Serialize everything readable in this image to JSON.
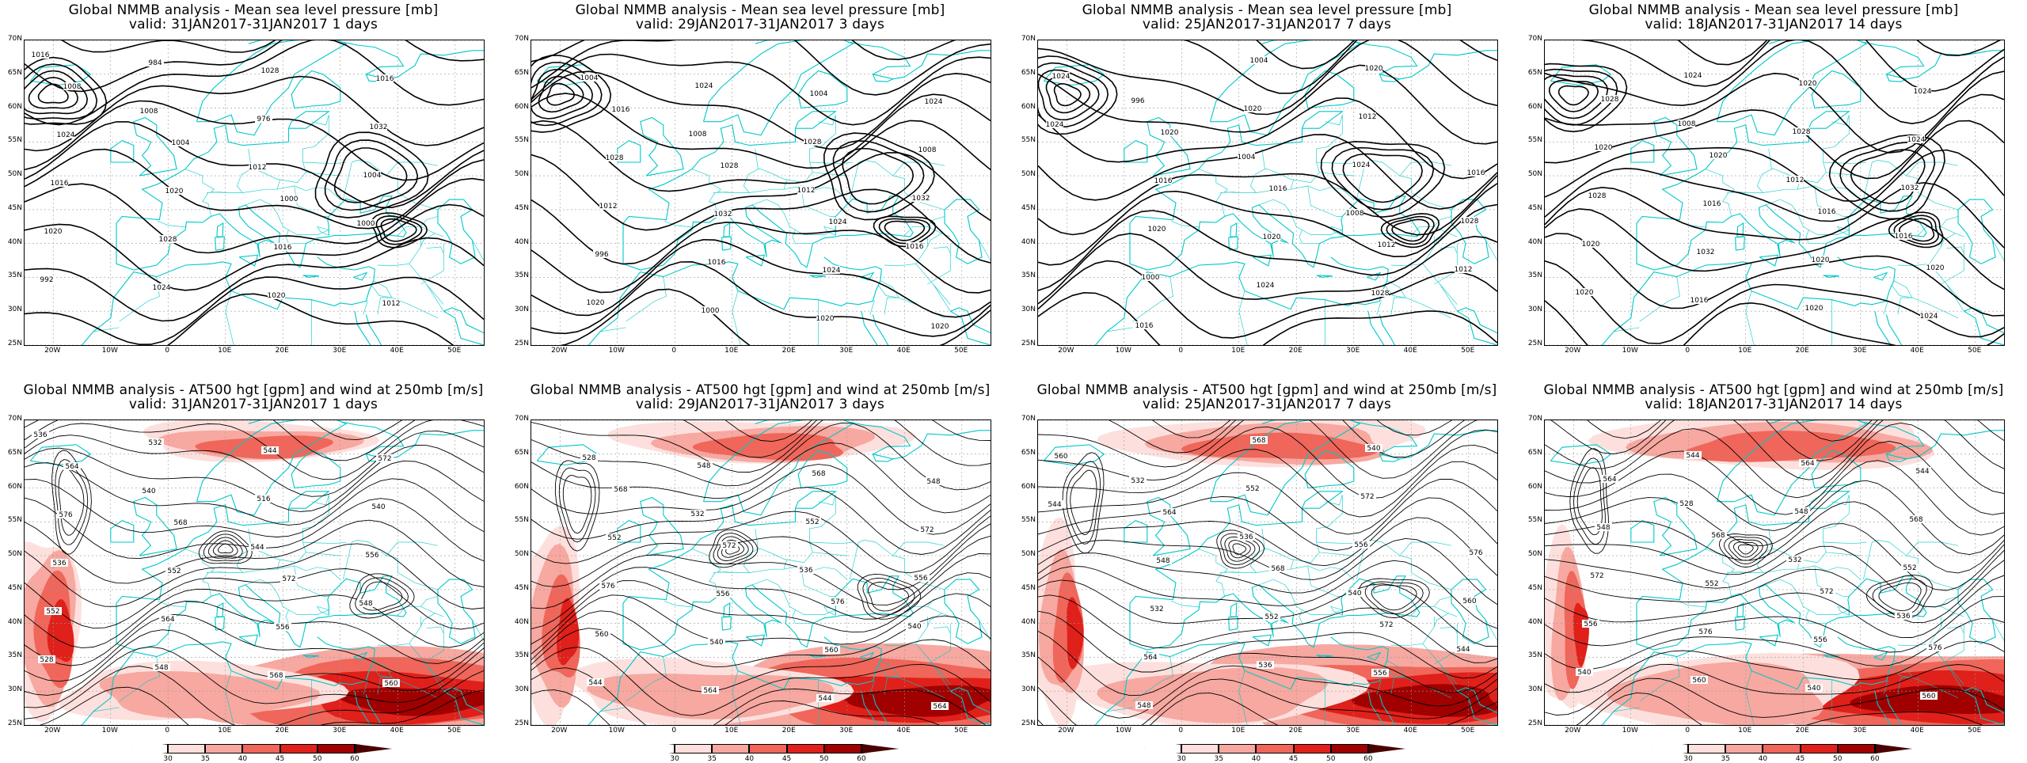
{
  "panels": [
    {
      "title": "Global NMMB analysis - Mean sea level pressure [mb]",
      "subtitle": "valid: 31JAN2017-31JAN2017  1 days",
      "kind": "mslp",
      "variant": 0,
      "labels": [
        "1016",
        "1008",
        "1012",
        "1000",
        "992",
        "984",
        "976",
        "1004",
        "1020",
        "1024",
        "1028",
        "1032",
        "1016",
        "1028",
        "1020",
        "1016",
        "1024",
        "1020",
        "1016",
        "1012",
        "1008",
        "1004",
        "1000"
      ]
    },
    {
      "title": "Global NMMB analysis - Mean sea level pressure [mb]",
      "subtitle": "valid: 29JAN2017-31JAN2017  3 days",
      "kind": "mslp",
      "variant": 1,
      "labels": [
        "1004",
        "1008",
        "1012",
        "1016",
        "1020",
        "1024",
        "1028",
        "1032",
        "996",
        "1000",
        "1004",
        "1008",
        "1012",
        "1016",
        "1020",
        "1024",
        "1028",
        "1032",
        "1024",
        "1020",
        "1016",
        "1028",
        "1024"
      ]
    },
    {
      "title": "Global NMMB analysis - Mean sea level pressure [mb]",
      "subtitle": "valid: 25JAN2017-31JAN2017  7 days",
      "kind": "mslp",
      "variant": 2,
      "labels": [
        "996",
        "1004",
        "1008",
        "1012",
        "1016",
        "1020",
        "1024",
        "1028",
        "1000",
        "1004",
        "1012",
        "1016",
        "1020",
        "1024",
        "1020",
        "1024",
        "1016",
        "1020",
        "1028",
        "1024",
        "1020",
        "1016",
        "1012"
      ]
    },
    {
      "title": "Global NMMB analysis - Mean sea level pressure [mb]",
      "subtitle": "valid: 18JAN2017-31JAN2017  14 days",
      "kind": "mslp",
      "variant": 3,
      "labels": [
        "1008",
        "1012",
        "1016",
        "1020",
        "1024",
        "1028",
        "1032",
        "1020",
        "1016",
        "1020",
        "1024",
        "1028",
        "1032",
        "1020",
        "1024",
        "1020",
        "1016",
        "1020",
        "1024",
        "1028",
        "1020",
        "1016",
        "1020"
      ]
    },
    {
      "title": "Global NMMB analysis - AT500 hgt [gpm] and wind at 250mb [m/s]",
      "subtitle": "valid: 31JAN2017-31JAN2017  1 days",
      "kind": "z500",
      "variant": 0,
      "labels": [
        "536",
        "540",
        "544",
        "548",
        "528",
        "532",
        "516",
        "556",
        "552",
        "548",
        "544",
        "540",
        "536",
        "564",
        "568",
        "572",
        "576",
        "552",
        "556",
        "560",
        "564",
        "568",
        "572"
      ]
    },
    {
      "title": "Global NMMB analysis - AT500 hgt [gpm] and wind at 250mb [m/s]",
      "subtitle": "valid: 29JAN2017-31JAN2017  3 days",
      "kind": "z500",
      "variant": 1,
      "labels": [
        "528",
        "532",
        "536",
        "540",
        "544",
        "548",
        "552",
        "556",
        "560",
        "564",
        "568",
        "572",
        "576",
        "540",
        "544",
        "548",
        "552",
        "556",
        "560",
        "564",
        "568",
        "572",
        "576"
      ]
    },
    {
      "title": "Global NMMB analysis - AT500 hgt [gpm] and wind at 250mb [m/s]",
      "subtitle": "valid: 25JAN2017-31JAN2017  7 days",
      "kind": "z500",
      "variant": 2,
      "labels": [
        "532",
        "536",
        "540",
        "544",
        "548",
        "552",
        "556",
        "560",
        "564",
        "568",
        "572",
        "576",
        "532",
        "536",
        "540",
        "544",
        "548",
        "552",
        "556",
        "560",
        "564",
        "568",
        "572"
      ]
    },
    {
      "title": "Global NMMB analysis - AT500 hgt [gpm] and wind at 250mb [m/s]",
      "subtitle": "valid: 18JAN2017-31JAN2017  14 days",
      "kind": "z500",
      "variant": 3,
      "labels": [
        "528",
        "532",
        "536",
        "540",
        "544",
        "548",
        "552",
        "556",
        "560",
        "564",
        "568",
        "572",
        "576",
        "540",
        "544",
        "548",
        "552",
        "556",
        "560",
        "564",
        "568",
        "572",
        "576"
      ]
    }
  ],
  "lat_labels": [
    "70N",
    "65N",
    "60N",
    "55N",
    "50N",
    "45N",
    "40N",
    "35N",
    "30N",
    "25N"
  ],
  "lon_labels": [
    "20W",
    "10W",
    "0",
    "10E",
    "20E",
    "30E",
    "40E",
    "50E"
  ],
  "colorbar": {
    "ticks": [
      "30",
      "35",
      "40",
      "45",
      "50",
      "60"
    ],
    "colors": [
      "#ffffff",
      "#fde0dd",
      "#f7a8a0",
      "#f0665a",
      "#e0201a",
      "#a00000",
      "#4a0000"
    ]
  },
  "colors": {
    "coast": "#00c8c8",
    "contour": "#000000",
    "grid": "#999999"
  }
}
